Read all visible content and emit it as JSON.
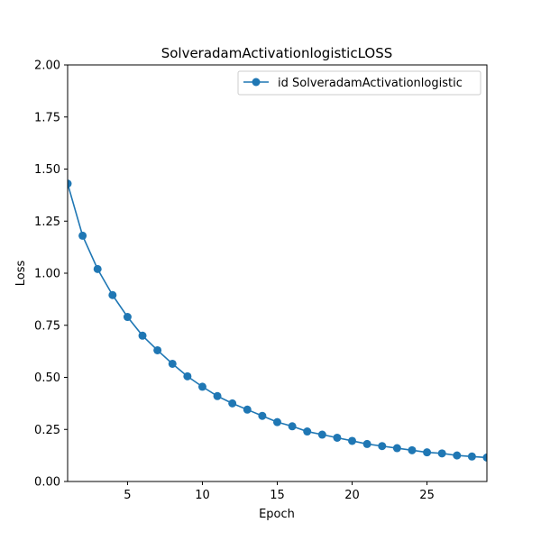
{
  "chart_data": {
    "type": "line",
    "title": "SolveradamActivationlogisticLOSS",
    "xlabel": "Epoch",
    "ylabel": "Loss",
    "xlim": [
      1,
      29
    ],
    "ylim": [
      0.0,
      2.0
    ],
    "xticks": [
      5,
      10,
      15,
      20,
      25
    ],
    "xtick_labels": [
      "5",
      "10",
      "15",
      "20",
      "25"
    ],
    "yticks": [
      0.0,
      0.25,
      0.5,
      0.75,
      1.0,
      1.25,
      1.5,
      1.75,
      2.0
    ],
    "ytick_labels": [
      "0.00",
      "0.25",
      "0.50",
      "0.75",
      "1.00",
      "1.25",
      "1.50",
      "1.75",
      "2.00"
    ],
    "grid": false,
    "legend_position": "top-right",
    "series": [
      {
        "name": "id SolveradamActivationlogistic",
        "color": "#1f77b4",
        "marker": "circle",
        "x": [
          1,
          2,
          3,
          4,
          5,
          6,
          7,
          8,
          9,
          10,
          11,
          12,
          13,
          14,
          15,
          16,
          17,
          18,
          19,
          20,
          21,
          22,
          23,
          24,
          25,
          26,
          27,
          28,
          29
        ],
        "y": [
          1.43,
          1.18,
          1.02,
          0.895,
          0.79,
          0.7,
          0.63,
          0.565,
          0.505,
          0.455,
          0.41,
          0.375,
          0.345,
          0.315,
          0.285,
          0.265,
          0.24,
          0.225,
          0.21,
          0.195,
          0.18,
          0.17,
          0.16,
          0.15,
          0.14,
          0.135,
          0.125,
          0.12,
          0.115
        ]
      }
    ]
  }
}
